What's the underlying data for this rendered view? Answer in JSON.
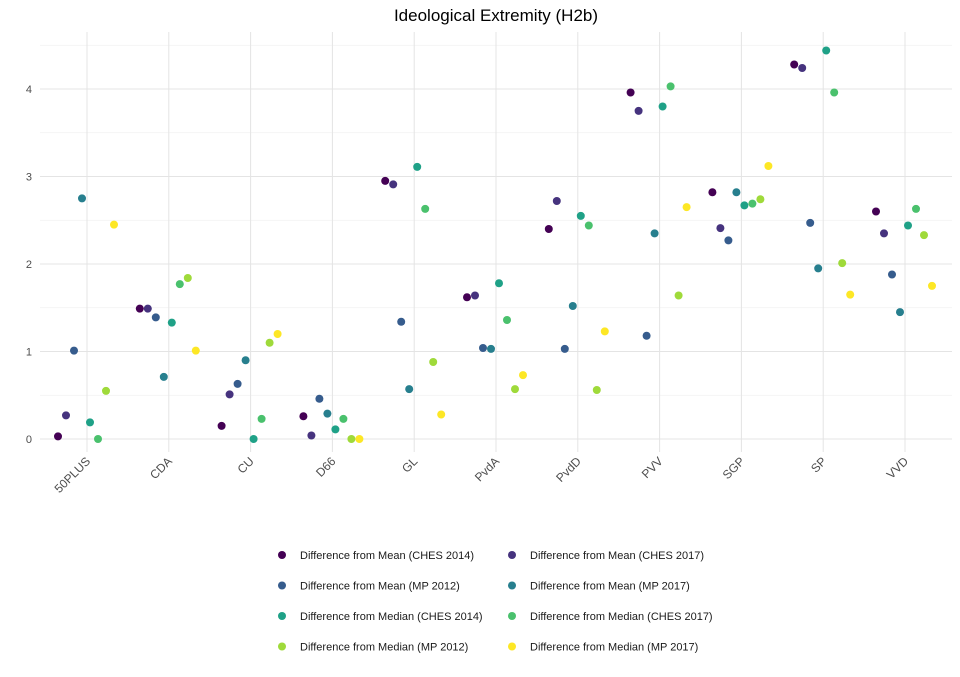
{
  "chart_data": {
    "type": "scatter",
    "title": "Ideological Extremity (H2b)",
    "xlabel": "",
    "ylabel": "",
    "categories": [
      "50PLUS",
      "CDA",
      "CU",
      "D66",
      "GL",
      "PvdA",
      "PvdD",
      "PVV",
      "SGP",
      "SP",
      "VVD"
    ],
    "yticks": [
      0,
      1,
      2,
      3,
      4
    ],
    "ylim": [
      -0.05,
      4.62
    ],
    "grid": true,
    "legend_position": "bottom",
    "series": [
      {
        "name": "Difference from Mean (CHES 2014)",
        "color": "#440154",
        "values": [
          0.03,
          1.49,
          0.15,
          0.26,
          2.95,
          1.62,
          2.4,
          3.96,
          2.82,
          4.28,
          2.6
        ]
      },
      {
        "name": "Difference from Mean (CHES 2017)",
        "color": "#46337E",
        "values": [
          0.27,
          1.49,
          0.51,
          0.04,
          2.91,
          1.64,
          2.72,
          3.75,
          2.41,
          4.24,
          2.35
        ]
      },
      {
        "name": "Difference from Mean (MP 2012)",
        "color": "#365C8D",
        "values": [
          1.01,
          1.39,
          0.63,
          0.46,
          1.34,
          1.04,
          1.03,
          1.18,
          2.27,
          2.47,
          1.88
        ]
      },
      {
        "name": "Difference from Mean (MP 2017)",
        "color": "#277F8E",
        "values": [
          2.75,
          0.71,
          0.9,
          0.29,
          0.57,
          1.03,
          1.52,
          2.35,
          2.82,
          1.95,
          1.45
        ]
      },
      {
        "name": "Difference from Median (CHES 2014)",
        "color": "#1FA187",
        "values": [
          0.19,
          1.33,
          0.0,
          0.11,
          3.11,
          1.78,
          2.55,
          3.8,
          2.67,
          4.44,
          2.44
        ]
      },
      {
        "name": "Difference from Median (CHES 2017)",
        "color": "#4AC16D",
        "values": [
          0.0,
          1.77,
          0.23,
          0.23,
          2.63,
          1.36,
          2.44,
          4.03,
          2.69,
          3.96,
          2.63
        ]
      },
      {
        "name": "Difference from Median (MP 2012)",
        "color": "#9FDA3A",
        "values": [
          0.55,
          1.84,
          1.1,
          0.0,
          0.88,
          0.57,
          0.56,
          1.64,
          2.74,
          2.01,
          2.33
        ]
      },
      {
        "name": "Difference from Median (MP 2017)",
        "color": "#FDE725",
        "values": [
          2.45,
          1.01,
          1.2,
          0.0,
          0.28,
          0.73,
          1.23,
          2.65,
          3.12,
          1.65,
          1.75
        ]
      }
    ]
  }
}
